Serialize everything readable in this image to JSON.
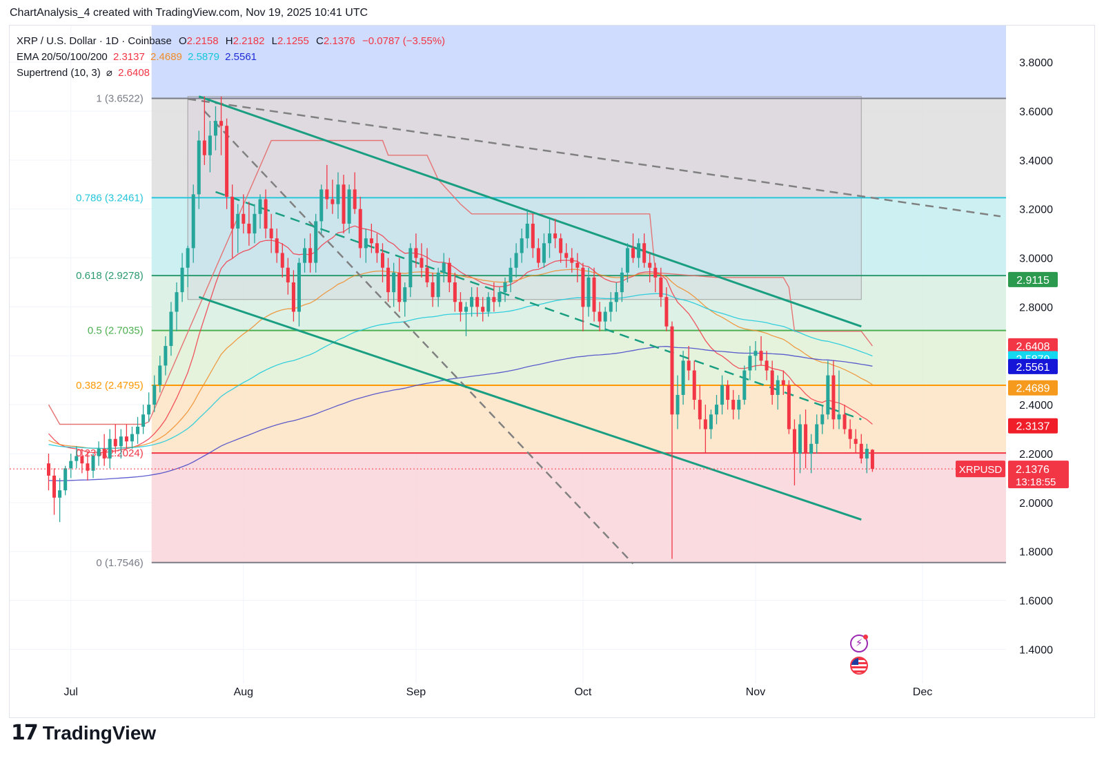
{
  "header": {
    "title": "ChartAnalysis_4 created with TradingView.com, Nov 19, 2025 10:41 UTC"
  },
  "legend": {
    "symbol_line": "XRP / U.S. Dollar · 1D · Coinbase",
    "o_label": "O",
    "o_value": "2.2158",
    "h_label": "H",
    "h_value": "2.2182",
    "l_label": "L",
    "l_value": "2.1255",
    "c_label": "C",
    "c_value": "2.1376",
    "change": "−0.0787 (−3.55%)",
    "ema_label": "EMA 20/50/100/200",
    "ema20": "2.3137",
    "ema50": "2.4689",
    "ema100": "2.5879",
    "ema200": "2.5561",
    "supertrend_label": "Supertrend (10, 3)",
    "supertrend_symbol": "⌀",
    "supertrend_value": "2.6408"
  },
  "footer": {
    "brand_mark": "17",
    "brand_name": "TradingView"
  },
  "icons": [
    "lightning-icon",
    "us-flag-icon"
  ],
  "colors": {
    "up": "#26a69a",
    "down": "#f23645",
    "ema20": "#f23645",
    "ema50": "#f08c28",
    "ema100": "#14c8dc",
    "ema200": "#3f3fc8",
    "channel": "#1a9e82",
    "dashed": "#808080"
  },
  "chart_data": {
    "type": "candlestick",
    "instrument": "XRPUSD",
    "price_tag": {
      "label": "XRPUSD",
      "value": "2.1376",
      "countdown": "13:18:55"
    },
    "y_ticks": [
      "3.8000",
      "3.6000",
      "3.4000",
      "3.2000",
      "3.0000",
      "2.8000",
      "2.6000",
      "2.4000",
      "2.2000",
      "2.0000",
      "1.8000",
      "1.6000",
      "1.4000"
    ],
    "y_tick_values": [
      3.8,
      3.6,
      3.4,
      3.2,
      3.0,
      2.8,
      2.6,
      2.4,
      2.2,
      2.0,
      1.8,
      1.6,
      1.4
    ],
    "ylim": [
      1.26,
      3.95
    ],
    "x_labels": [
      {
        "label": "Jul",
        "day": 4
      },
      {
        "label": "Aug",
        "day": 35
      },
      {
        "label": "Sep",
        "day": 66
      },
      {
        "label": "Oct",
        "day": 96
      },
      {
        "label": "Nov",
        "day": 127
      },
      {
        "label": "Dec",
        "day": 157
      }
    ],
    "xlim": [
      -7,
      172
    ],
    "fib_levels": [
      {
        "ratio": "1",
        "price": 3.6522,
        "label": "1 (3.6522)",
        "color": "#787b86",
        "fill": "#ffffff00"
      },
      {
        "ratio": "0.786",
        "price": 3.2461,
        "label": "0.786 (3.2461)",
        "color": "#26c6da",
        "fill": "#e0e0e0"
      },
      {
        "ratio": "0.618",
        "price": 2.9278,
        "label": "0.618 (2.9278)",
        "color": "#2b9a6f",
        "fill": "#c8f0f2"
      },
      {
        "ratio": "0.5",
        "price": 2.7035,
        "label": "0.5 (2.7035)",
        "color": "#4caf50",
        "fill": "#d9efe3"
      },
      {
        "ratio": "0.382",
        "price": 2.4795,
        "label": "0.382 (2.4795)",
        "color": "#ff9800",
        "fill": "#e2f2d8"
      },
      {
        "ratio": "0.236",
        "price": 2.2024,
        "label": "0.236 (2.2024)",
        "color": "#f23645",
        "fill": "#fde6c8"
      },
      {
        "ratio": "0",
        "price": 1.7546,
        "label": "0 (1.7546)",
        "color": "#787b86",
        "fill": "#f9d7dc"
      }
    ],
    "fib_top_fill": "#d0dcfd",
    "axis_tags": [
      {
        "value": "2.9115",
        "price": 2.9115,
        "color": "#2b9a4f"
      },
      {
        "value": "2.6408",
        "price": 2.6408,
        "color": "#f23645"
      },
      {
        "value": "2.5879",
        "price": 2.5879,
        "color": "#14d8f0"
      },
      {
        "value": "2.5561",
        "price": 2.5561,
        "color": "#1515d8"
      },
      {
        "value": "2.4689",
        "price": 2.4689,
        "color": "#f59a1c"
      },
      {
        "value": "2.3137",
        "price": 2.3137,
        "color": "#f01e28"
      }
    ],
    "candles": [
      [
        2.16,
        2.2,
        2.05,
        2.11
      ],
      [
        2.11,
        2.14,
        1.95,
        2.02
      ],
      [
        2.02,
        2.1,
        1.92,
        2.05
      ],
      [
        2.05,
        2.15,
        2.03,
        2.14
      ],
      [
        2.14,
        2.2,
        2.1,
        2.17
      ],
      [
        2.17,
        2.23,
        2.14,
        2.19
      ],
      [
        2.19,
        2.22,
        2.12,
        2.16
      ],
      [
        2.16,
        2.21,
        2.09,
        2.13
      ],
      [
        2.13,
        2.2,
        2.1,
        2.19
      ],
      [
        2.19,
        2.25,
        2.15,
        2.22
      ],
      [
        2.22,
        2.28,
        2.15,
        2.18
      ],
      [
        2.18,
        2.3,
        2.14,
        2.26
      ],
      [
        2.26,
        2.32,
        2.2,
        2.23
      ],
      [
        2.23,
        2.3,
        2.18,
        2.27
      ],
      [
        2.27,
        2.32,
        2.22,
        2.25
      ],
      [
        2.25,
        2.31,
        2.22,
        2.28
      ],
      [
        2.28,
        2.35,
        2.24,
        2.31
      ],
      [
        2.31,
        2.4,
        2.28,
        2.36
      ],
      [
        2.36,
        2.45,
        2.33,
        2.4
      ],
      [
        2.4,
        2.52,
        2.37,
        2.48
      ],
      [
        2.48,
        2.6,
        2.45,
        2.56
      ],
      [
        2.56,
        2.68,
        2.52,
        2.64
      ],
      [
        2.64,
        2.82,
        2.6,
        2.78
      ],
      [
        2.78,
        2.9,
        2.7,
        2.86
      ],
      [
        2.86,
        3.02,
        2.82,
        2.96
      ],
      [
        2.96,
        3.05,
        2.88,
        3.04
      ],
      [
        3.04,
        3.3,
        2.98,
        3.26
      ],
      [
        3.26,
        3.52,
        3.2,
        3.48
      ],
      [
        3.48,
        3.66,
        3.38,
        3.42
      ],
      [
        3.42,
        3.56,
        3.35,
        3.5
      ],
      [
        3.5,
        3.62,
        3.44,
        3.56
      ],
      [
        3.56,
        3.66,
        3.42,
        3.54
      ],
      [
        3.54,
        3.57,
        3.2,
        3.25
      ],
      [
        3.25,
        3.3,
        3.0,
        3.12
      ],
      [
        3.12,
        3.22,
        3.02,
        3.18
      ],
      [
        3.18,
        3.26,
        3.1,
        3.14
      ],
      [
        3.14,
        3.23,
        3.05,
        3.1
      ],
      [
        3.1,
        3.22,
        3.06,
        3.18
      ],
      [
        3.18,
        3.26,
        3.12,
        3.24
      ],
      [
        3.24,
        3.28,
        3.08,
        3.12
      ],
      [
        3.12,
        3.18,
        3.02,
        3.08
      ],
      [
        3.08,
        3.12,
        2.98,
        3.02
      ],
      [
        3.02,
        3.06,
        2.92,
        2.96
      ],
      [
        2.96,
        3.0,
        2.85,
        2.9
      ],
      [
        2.9,
        2.95,
        2.74,
        2.78
      ],
      [
        2.78,
        3.0,
        2.72,
        2.98
      ],
      [
        2.98,
        3.08,
        2.94,
        3.04
      ],
      [
        3.04,
        3.1,
        2.94,
        2.98
      ],
      [
        2.98,
        3.18,
        2.94,
        3.15
      ],
      [
        3.15,
        3.3,
        3.1,
        3.28
      ],
      [
        3.28,
        3.38,
        3.2,
        3.24
      ],
      [
        3.24,
        3.32,
        3.18,
        3.22
      ],
      [
        3.22,
        3.35,
        3.16,
        3.3
      ],
      [
        3.3,
        3.34,
        3.1,
        3.14
      ],
      [
        3.14,
        3.3,
        3.1,
        3.28
      ],
      [
        3.28,
        3.35,
        3.18,
        3.2
      ],
      [
        3.2,
        3.25,
        3.0,
        3.04
      ],
      [
        3.04,
        3.12,
        2.98,
        3.08
      ],
      [
        3.08,
        3.14,
        3.02,
        3.06
      ],
      [
        3.06,
        3.1,
        2.98,
        3.02
      ],
      [
        3.02,
        3.06,
        2.9,
        2.96
      ],
      [
        2.96,
        3.0,
        2.82,
        2.86
      ],
      [
        2.86,
        2.98,
        2.8,
        2.94
      ],
      [
        2.94,
        3.0,
        2.78,
        2.82
      ],
      [
        2.82,
        2.9,
        2.76,
        2.88
      ],
      [
        2.88,
        3.06,
        2.84,
        3.04
      ],
      [
        3.04,
        3.1,
        2.96,
        3.0
      ],
      [
        3.0,
        3.06,
        2.92,
        2.96
      ],
      [
        2.96,
        3.04,
        2.88,
        2.9
      ],
      [
        2.9,
        2.94,
        2.8,
        2.84
      ],
      [
        2.84,
        2.96,
        2.8,
        2.94
      ],
      [
        2.94,
        3.02,
        2.9,
        2.98
      ],
      [
        2.98,
        3.0,
        2.86,
        2.9
      ],
      [
        2.9,
        2.94,
        2.78,
        2.82
      ],
      [
        2.82,
        2.86,
        2.74,
        2.78
      ],
      [
        2.78,
        2.82,
        2.68,
        2.8
      ],
      [
        2.8,
        2.88,
        2.76,
        2.84
      ],
      [
        2.84,
        2.88,
        2.76,
        2.8
      ],
      [
        2.8,
        2.84,
        2.74,
        2.78
      ],
      [
        2.78,
        2.86,
        2.76,
        2.84
      ],
      [
        2.84,
        2.9,
        2.78,
        2.82
      ],
      [
        2.82,
        2.88,
        2.8,
        2.86
      ],
      [
        2.86,
        2.92,
        2.82,
        2.9
      ],
      [
        2.9,
        3.0,
        2.86,
        2.96
      ],
      [
        2.96,
        3.06,
        2.92,
        3.02
      ],
      [
        3.02,
        3.12,
        2.98,
        3.08
      ],
      [
        3.08,
        3.2,
        3.04,
        3.14
      ],
      [
        3.14,
        3.18,
        3.0,
        3.04
      ],
      [
        3.04,
        3.08,
        2.96,
        2.98
      ],
      [
        2.98,
        3.1,
        2.96,
        3.06
      ],
      [
        3.06,
        3.16,
        3.0,
        3.1
      ],
      [
        3.1,
        3.16,
        3.04,
        3.08
      ],
      [
        3.08,
        3.1,
        2.98,
        3.02
      ],
      [
        3.02,
        3.06,
        2.96,
        3.0
      ],
      [
        3.0,
        3.04,
        2.94,
        2.98
      ],
      [
        2.98,
        3.02,
        2.9,
        2.96
      ],
      [
        2.96,
        2.98,
        2.7,
        2.8
      ],
      [
        2.8,
        2.96,
        2.76,
        2.92
      ],
      [
        2.92,
        2.96,
        2.74,
        2.78
      ],
      [
        2.78,
        2.82,
        2.7,
        2.74
      ],
      [
        2.74,
        2.8,
        2.7,
        2.78
      ],
      [
        2.78,
        2.86,
        2.74,
        2.82
      ],
      [
        2.82,
        2.9,
        2.78,
        2.86
      ],
      [
        2.86,
        2.96,
        2.82,
        2.94
      ],
      [
        2.94,
        3.06,
        2.9,
        3.04
      ],
      [
        3.04,
        3.1,
        2.98,
        3.0
      ],
      [
        3.0,
        3.08,
        2.96,
        3.06
      ],
      [
        3.06,
        3.1,
        2.96,
        2.98
      ],
      [
        2.98,
        3.02,
        2.9,
        2.96
      ],
      [
        2.96,
        2.98,
        2.86,
        2.92
      ],
      [
        2.92,
        2.96,
        2.8,
        2.84
      ],
      [
        2.84,
        2.88,
        2.7,
        2.72
      ],
      [
        2.72,
        2.74,
        1.77,
        2.36
      ],
      [
        2.36,
        2.52,
        2.3,
        2.44
      ],
      [
        2.44,
        2.62,
        2.4,
        2.58
      ],
      [
        2.58,
        2.64,
        2.5,
        2.54
      ],
      [
        2.54,
        2.58,
        2.38,
        2.42
      ],
      [
        2.42,
        2.48,
        2.3,
        2.34
      ],
      [
        2.34,
        2.4,
        2.2,
        2.3
      ],
      [
        2.3,
        2.38,
        2.26,
        2.36
      ],
      [
        2.36,
        2.44,
        2.32,
        2.4
      ],
      [
        2.4,
        2.52,
        2.36,
        2.48
      ],
      [
        2.48,
        2.5,
        2.38,
        2.42
      ],
      [
        2.42,
        2.46,
        2.34,
        2.38
      ],
      [
        2.38,
        2.44,
        2.34,
        2.42
      ],
      [
        2.42,
        2.56,
        2.4,
        2.54
      ],
      [
        2.54,
        2.64,
        2.5,
        2.6
      ],
      [
        2.6,
        2.66,
        2.54,
        2.62
      ],
      [
        2.62,
        2.68,
        2.56,
        2.58
      ],
      [
        2.58,
        2.62,
        2.5,
        2.54
      ],
      [
        2.54,
        2.58,
        2.4,
        2.44
      ],
      [
        2.44,
        2.52,
        2.38,
        2.5
      ],
      [
        2.5,
        2.54,
        2.44,
        2.48
      ],
      [
        2.48,
        2.5,
        2.28,
        2.3
      ],
      [
        2.3,
        2.34,
        2.07,
        2.2
      ],
      [
        2.2,
        2.36,
        2.12,
        2.32
      ],
      [
        2.32,
        2.38,
        2.14,
        2.2
      ],
      [
        2.2,
        2.28,
        2.12,
        2.24
      ],
      [
        2.24,
        2.36,
        2.2,
        2.32
      ],
      [
        2.32,
        2.4,
        2.28,
        2.36
      ],
      [
        2.36,
        2.58,
        2.34,
        2.52
      ],
      [
        2.52,
        2.58,
        2.3,
        2.34
      ],
      [
        2.34,
        2.54,
        2.3,
        2.36
      ],
      [
        2.36,
        2.4,
        2.28,
        2.3
      ],
      [
        2.3,
        2.34,
        2.22,
        2.26
      ],
      [
        2.26,
        2.3,
        2.2,
        2.24
      ],
      [
        2.24,
        2.28,
        2.16,
        2.18
      ],
      [
        2.18,
        2.24,
        2.12,
        2.22
      ],
      [
        2.2158,
        2.2182,
        2.1255,
        2.1376
      ]
    ],
    "channel_upper": [
      [
        27,
        3.66
      ],
      [
        146,
        2.72
      ]
    ],
    "channel_lower": [
      [
        27,
        2.84
      ],
      [
        146,
        1.93
      ]
    ],
    "trend_dashed_long": [
      [
        25,
        3.65
      ],
      [
        171,
        3.17
      ]
    ],
    "trend_dashed_steep": [
      [
        28,
        3.6
      ],
      [
        105,
        1.75
      ]
    ],
    "trend_dashed_mid": [
      [
        30,
        3.27
      ],
      [
        146,
        2.34
      ]
    ],
    "gray_box": {
      "x0": 25,
      "x1": 146,
      "y0": 2.83,
      "y1": 3.66
    },
    "supertrend_line": [
      [
        0,
        2.4
      ],
      [
        2,
        2.32
      ],
      [
        8,
        2.32
      ],
      [
        9,
        2.32
      ],
      [
        17,
        2.32
      ],
      [
        18,
        2.33
      ],
      [
        40,
        3.48
      ],
      [
        60,
        3.48
      ],
      [
        61,
        3.42
      ],
      [
        68,
        3.42
      ],
      [
        70,
        3.32
      ],
      [
        74,
        3.22
      ],
      [
        76,
        3.18
      ],
      [
        93,
        3.18
      ],
      [
        108,
        3.18
      ],
      [
        109,
        2.94
      ],
      [
        120,
        2.92
      ],
      [
        132,
        2.92
      ],
      [
        133,
        2.88
      ],
      [
        134,
        2.7
      ],
      [
        140,
        2.7
      ],
      [
        146,
        2.7
      ],
      [
        148,
        2.64
      ]
    ]
  }
}
